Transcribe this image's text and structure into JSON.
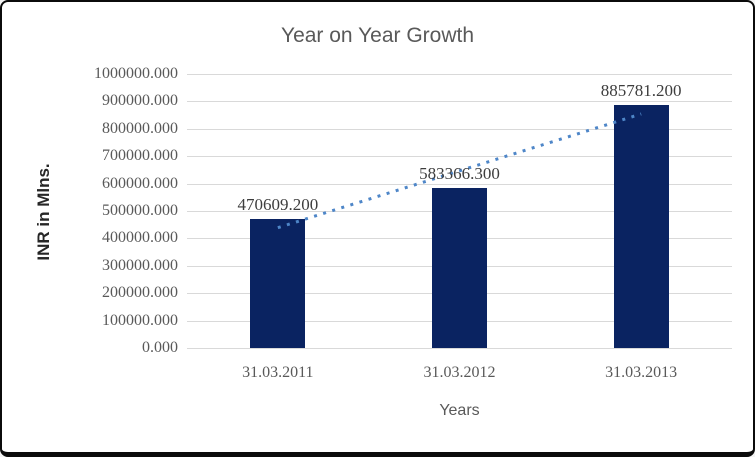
{
  "chart_data": {
    "type": "bar",
    "title": "Year on Year Growth",
    "xlabel": "Years",
    "ylabel": "INR in Mlns.",
    "categories": [
      "31.03.2011",
      "31.03.2012",
      "31.03.2013"
    ],
    "values": [
      470609.2,
      583366.3,
      885781.2
    ],
    "point_labels": [
      "470609.200",
      "583366.300",
      "885781.200"
    ],
    "ylim": [
      0,
      1000000
    ],
    "ytick_step": 100000,
    "ytick_labels_top_to_bottom": [
      "1000000.000",
      "900000.000",
      "800000.000",
      "700000.000",
      "600000.000",
      "500000.000",
      "400000.000",
      "300000.000",
      "200000.000",
      "100000.000",
      "0.000"
    ],
    "grid": true,
    "legend_position": "none",
    "trendline": {
      "type": "linear",
      "style": "dotted"
    },
    "colors": {
      "bar": "#0a2361",
      "trendline": "#4e86c8",
      "gridline": "#d9d9d9",
      "title_text": "#595959",
      "tick_text": "#595959",
      "data_label_text": "#3d3d3d",
      "y_axis_title_text": "#262626",
      "x_axis_title_text": "#595959",
      "background": "#ffffff"
    }
  }
}
